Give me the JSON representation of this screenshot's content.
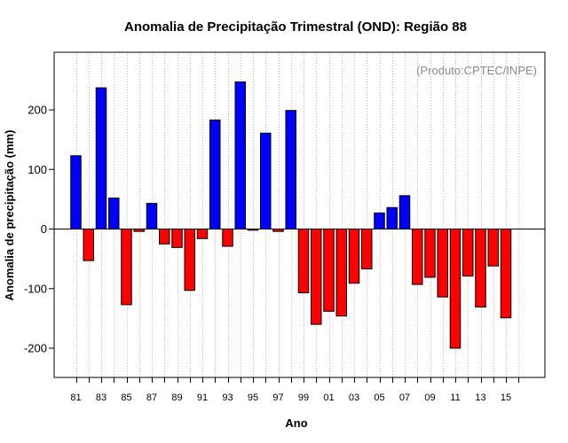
{
  "chart_data": {
    "type": "bar",
    "title": "Anomalia de Precipitação Trimestral (OND): Região 88",
    "credit": "(Produto:CPTEC/INPE)",
    "xlabel": "Ano",
    "ylabel": "Anomalia de precipitação (mm)",
    "ylim": [
      -250,
      295
    ],
    "yticks": [
      -200,
      -100,
      0,
      100,
      200
    ],
    "years": [
      1981,
      1982,
      1983,
      1984,
      1985,
      1986,
      1987,
      1988,
      1989,
      1990,
      1991,
      1992,
      1993,
      1994,
      1995,
      1996,
      1997,
      1998,
      1999,
      2000,
      2001,
      2002,
      2003,
      2004,
      2005,
      2006,
      2007,
      2008,
      2009,
      2010,
      2011,
      2012,
      2013,
      2014,
      2015
    ],
    "categories": [
      "81",
      "82",
      "83",
      "84",
      "85",
      "86",
      "87",
      "88",
      "89",
      "90",
      "91",
      "92",
      "93",
      "94",
      "95",
      "96",
      "97",
      "98",
      "99",
      "00",
      "01",
      "02",
      "03",
      "04",
      "05",
      "06",
      "07",
      "08",
      "09",
      "10",
      "11",
      "12",
      "13",
      "14",
      "15"
    ],
    "xtick_labels": [
      "81",
      "83",
      "85",
      "87",
      "89",
      "91",
      "93",
      "95",
      "97",
      "99",
      "01",
      "03",
      "05",
      "07",
      "09",
      "11",
      "13",
      "15"
    ],
    "values": [
      123,
      -53,
      237,
      52,
      -127,
      -4,
      43,
      -25,
      -31,
      -103,
      -16,
      183,
      -29,
      247,
      -2,
      161,
      -4,
      199,
      -107,
      -160,
      -138,
      -146,
      -91,
      -67,
      27,
      36,
      56,
      -93,
      -81,
      -114,
      -200,
      -79,
      -131,
      -62,
      -149
    ],
    "colors": {
      "positive": "#0000ff",
      "negative": "#ff0000",
      "grid": "#bbbbbb"
    },
    "grid": true
  }
}
